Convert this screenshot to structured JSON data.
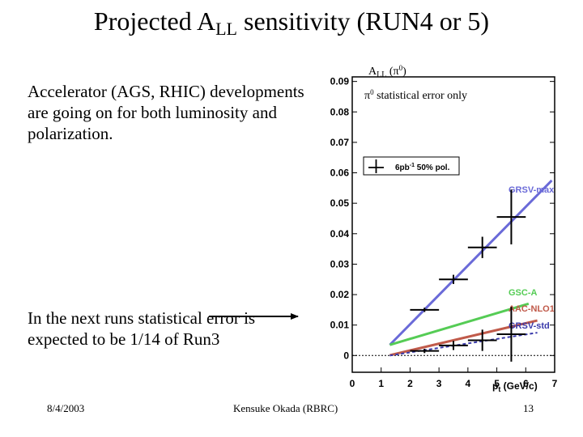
{
  "slide": {
    "title_main": "Projected A",
    "title_sub": "LL",
    "title_rest": " sensitivity (RUN4 or 5)",
    "para1": "Accelerator (AGS, RHIC) developments are going on for both luminosity and polarization.",
    "para2": "In the next runs statistical error is expected to be 1/14 of Run3",
    "footer_date": "8/4/2003",
    "footer_author": "Kensuke Okada (RBRC)",
    "footer_page": "13",
    "arrow_color": "#000000"
  },
  "chart_data": {
    "type": "scatter",
    "title": "A",
    "title_sub": "LL",
    "title_rest": " (π",
    "title_sup": "0",
    "title_end": ")",
    "subtitle_symbol": "π",
    "subtitle_sup": "0",
    "subtitle_text": " statistical error only",
    "xlabel_main": "p",
    "xlabel_sub": "t",
    "xlabel_unit": " (GeV/c)",
    "xlim": [
      0,
      7
    ],
    "ylim": [
      -0.0055,
      0.0915
    ],
    "x_ticks": [
      "0",
      "1",
      "2",
      "3",
      "4",
      "5",
      "6",
      "7"
    ],
    "y_ticks": [
      "0",
      "0.01",
      "0.02",
      "0.03",
      "0.04",
      "0.05",
      "0.06",
      "0.07",
      "0.08",
      "0.09"
    ],
    "legend_label": "6pb",
    "legend_sup": "-1",
    "legend_rest": " 50% pol.",
    "legend_position": "top-left",
    "zero_line": "dotted",
    "curves": [
      {
        "name": "GRSV-max",
        "color": "#6a6ad8",
        "x": [
          1.3,
          6.9
        ],
        "y": [
          0.0035,
          0.0575
        ]
      },
      {
        "name": "GSC-A",
        "color": "#55cc55",
        "x": [
          1.3,
          6.1
        ],
        "y": [
          0.0035,
          0.017
        ]
      },
      {
        "name": "AAC-NLO1",
        "color": "#c05a4a",
        "x": [
          1.3,
          6.4
        ],
        "y": [
          0.0001,
          0.0115
        ]
      },
      {
        "name": "GRSV-std",
        "color": "#3a3aaa",
        "x": [
          1.3,
          6.4
        ],
        "y": [
          0.0,
          0.0075
        ],
        "dash": true
      }
    ],
    "points_max": [
      {
        "x": 2.5,
        "y": 0.015,
        "xerr": 0.5,
        "yerr": 0.0007
      },
      {
        "x": 3.5,
        "y": 0.025,
        "xerr": 0.5,
        "yerr": 0.0015
      },
      {
        "x": 4.5,
        "y": 0.0355,
        "xerr": 0.5,
        "yerr": 0.0035
      },
      {
        "x": 5.5,
        "y": 0.0455,
        "xerr": 0.5,
        "yerr": 0.009
      }
    ],
    "points_std": [
      {
        "x": 2.5,
        "y": 0.0015,
        "xerr": 0.5,
        "yerr": 0.0007
      },
      {
        "x": 3.5,
        "y": 0.0033,
        "xerr": 0.5,
        "yerr": 0.0015
      },
      {
        "x": 4.5,
        "y": 0.005,
        "xerr": 0.5,
        "yerr": 0.0035
      },
      {
        "x": 5.5,
        "y": 0.007,
        "xerr": 0.5,
        "yerr": 0.009
      }
    ]
  }
}
